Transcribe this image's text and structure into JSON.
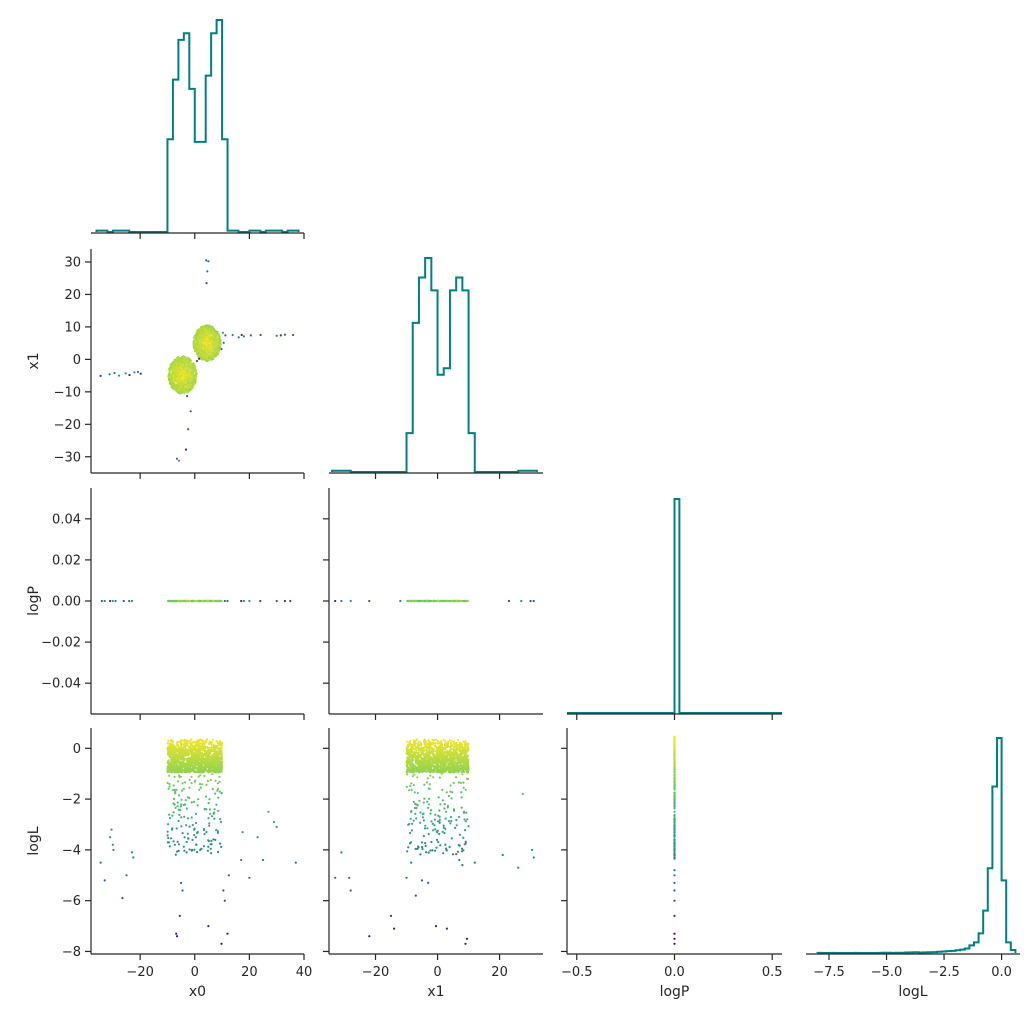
{
  "chart_data": {
    "type": "corner",
    "variables": [
      "x0",
      "x1",
      "logP",
      "logL"
    ],
    "line_color": "#008080",
    "colormap": "viridis",
    "color_by": "logL",
    "axes": {
      "x0": {
        "range": [
          -38,
          40
        ],
        "ticks": [
          -20,
          0,
          20,
          40
        ]
      },
      "x1": {
        "range": [
          -35,
          34
        ],
        "ticks": [
          -30,
          -20,
          -10,
          0,
          10,
          20,
          30
        ]
      },
      "logP": {
        "range": [
          -0.055,
          0.055
        ],
        "ticks": [
          -0.04,
          -0.02,
          0.0,
          0.02,
          0.04
        ],
        "hist_range": [
          -0.55,
          0.55
        ],
        "hist_ticks": [
          -0.5,
          0.0,
          0.5
        ]
      },
      "logL": {
        "range": [
          -8.1,
          0.8
        ],
        "ticks": [
          -8,
          -6,
          -4,
          -2,
          0
        ],
        "hist_range": [
          -8.5,
          0.8
        ],
        "hist_ticks": [
          -7.5,
          -5.0,
          -2.5,
          0.0
        ]
      }
    },
    "tick_labels": {
      "x0": [
        "−20",
        "0",
        "20",
        "40"
      ],
      "x1_row": [
        "−30",
        "−20",
        "−10",
        "0",
        "10",
        "20",
        "30"
      ],
      "x1_col": [
        "−20",
        "0",
        "20"
      ],
      "logP_row": [
        "−0.04",
        "−0.02",
        "0.00",
        "0.02",
        "0.04"
      ],
      "logP_col": [
        "−0.5",
        "0.0",
        "0.5"
      ],
      "logL_row": [
        "−8",
        "−6",
        "−4",
        "−2",
        "0"
      ],
      "logL_col": [
        "−7.5",
        "−5.0",
        "−2.5",
        "0.0"
      ]
    },
    "histograms": {
      "x0": {
        "edges": [
          -36,
          -34,
          -32,
          -30,
          -28,
          -26,
          -24,
          -22,
          -20,
          -18,
          -16,
          -14,
          -12,
          -10,
          -8,
          -6,
          -4,
          -2,
          0,
          2,
          4,
          6,
          8,
          10,
          12,
          14,
          16,
          18,
          20,
          22,
          24,
          26,
          28,
          30,
          32,
          34,
          36,
          38
        ],
        "counts": [
          1,
          1,
          0,
          1,
          1,
          1,
          0,
          0,
          0,
          0,
          0,
          0,
          0,
          70,
          115,
          145,
          150,
          108,
          68,
          68,
          118,
          150,
          160,
          70,
          1,
          1,
          0,
          0,
          1,
          1,
          0,
          1,
          1,
          1,
          0,
          1,
          1
        ]
      },
      "x1": {
        "edges": [
          -34,
          -32,
          -30,
          -28,
          -26,
          -24,
          -22,
          -20,
          -18,
          -16,
          -14,
          -12,
          -10,
          -8,
          -6,
          -4,
          -2,
          0,
          2,
          4,
          6,
          8,
          10,
          12,
          14,
          16,
          18,
          20,
          22,
          24,
          26,
          28,
          30,
          32
        ],
        "counts": [
          1,
          1,
          1,
          0,
          0,
          0,
          0,
          0,
          0,
          0,
          0,
          0,
          30,
          115,
          150,
          165,
          140,
          75,
          80,
          140,
          150,
          140,
          30,
          0,
          0,
          0,
          0,
          0,
          0,
          0,
          1,
          1,
          1
        ]
      },
      "logP": {
        "edges": [
          -0.55,
          -0.525,
          -0.5,
          -0.475,
          -0.45,
          -0.425,
          -0.4,
          -0.375,
          -0.35,
          -0.325,
          -0.3,
          -0.275,
          -0.25,
          -0.225,
          -0.2,
          -0.175,
          -0.15,
          -0.125,
          -0.1,
          -0.075,
          -0.05,
          -0.025,
          0.0,
          0.025,
          0.05,
          0.075,
          0.1,
          0.125,
          0.15,
          0.175,
          0.2,
          0.225,
          0.25,
          0.275,
          0.3,
          0.325,
          0.35,
          0.375,
          0.4,
          0.425,
          0.45,
          0.475,
          0.5,
          0.525,
          0.55
        ],
        "counts": [
          0,
          0,
          0,
          0,
          0,
          0,
          0,
          0,
          0,
          0,
          0,
          0,
          0,
          0,
          0,
          0,
          0,
          0,
          0,
          0,
          0,
          0,
          1000,
          0,
          0,
          0,
          0,
          0,
          0,
          0,
          0,
          0,
          0,
          0,
          0,
          0,
          0,
          0,
          0,
          0,
          0,
          0,
          0,
          0
        ]
      },
      "logL": {
        "edges": [
          -8.0,
          -7.8,
          -7.6,
          -7.4,
          -7.2,
          -7.0,
          -6.8,
          -6.6,
          -6.4,
          -6.2,
          -6.0,
          -5.8,
          -5.6,
          -5.4,
          -5.2,
          -5.0,
          -4.8,
          -4.6,
          -4.4,
          -4.2,
          -4.0,
          -3.8,
          -3.6,
          -3.4,
          -3.2,
          -3.0,
          -2.8,
          -2.6,
          -2.4,
          -2.2,
          -2.0,
          -1.8,
          -1.6,
          -1.4,
          -1.2,
          -1.0,
          -0.8,
          -0.6,
          -0.4,
          -0.2,
          0.0,
          0.2,
          0.4,
          0.6
        ],
        "counts": [
          1,
          0,
          0,
          1,
          0,
          0,
          0,
          0,
          1,
          0,
          0,
          0,
          0,
          1,
          2,
          2,
          1,
          2,
          2,
          3,
          4,
          5,
          3,
          4,
          5,
          6,
          8,
          10,
          12,
          14,
          18,
          22,
          30,
          50,
          70,
          130,
          280,
          560,
          1100,
          1420,
          480,
          70,
          20
        ]
      }
    },
    "scatter": {
      "x0_x1": [
        [
          4.2,
          30.5
        ],
        [
          5.0,
          30.2
        ],
        [
          4.6,
          27.1
        ],
        [
          4.3,
          23.5
        ],
        [
          -34.5,
          -5.1
        ],
        [
          -31.2,
          -4.6
        ],
        [
          -29.4,
          -4.2
        ],
        [
          -27.8,
          -5.0
        ],
        [
          -25.3,
          -4.3
        ],
        [
          -23.9,
          -4.8
        ],
        [
          -22.1,
          -4.0
        ],
        [
          -20.8,
          -3.9
        ],
        [
          -19.8,
          -4.4
        ],
        [
          -6.5,
          -30.6
        ],
        [
          -5.8,
          -31.2
        ],
        [
          -3.2,
          -27.8
        ],
        [
          -2.4,
          -21.5
        ],
        [
          -1.5,
          -16.0
        ],
        [
          -2.8,
          -11.3
        ],
        [
          0.8,
          -0.5
        ],
        [
          1.6,
          0.2
        ],
        [
          10.3,
          8.2
        ],
        [
          11.2,
          7.4
        ],
        [
          10.6,
          5.1
        ],
        [
          9.8,
          3.2
        ],
        [
          13.9,
          7.5
        ],
        [
          16.1,
          6.8
        ],
        [
          17.2,
          7.5
        ],
        [
          18.0,
          7.1
        ],
        [
          20.5,
          7.4
        ],
        [
          24.1,
          7.5
        ],
        [
          30.0,
          7.3
        ],
        [
          31.5,
          7.4
        ],
        [
          33.0,
          7.6
        ],
        [
          36.0,
          7.5
        ]
      ],
      "clusters": [
        {
          "cx": -4.5,
          "cy": -4.8,
          "rx": 5.2,
          "ry": 5.8,
          "n": 900
        },
        {
          "cx": 4.5,
          "cy": 5.0,
          "rx": 5.0,
          "ry": 5.5,
          "n": 900
        }
      ],
      "x0_logL_outliers": [
        [
          -34.5,
          -4.5
        ],
        [
          -33.0,
          -5.2
        ],
        [
          -31.0,
          -3.5
        ],
        [
          -30.5,
          -3.2
        ],
        [
          -30.0,
          -3.8
        ],
        [
          -29.8,
          -4.0
        ],
        [
          -26.5,
          -5.9
        ],
        [
          -25.0,
          -5.0
        ],
        [
          -23.0,
          -4.1
        ],
        [
          -22.5,
          -4.3
        ],
        [
          -6.8,
          -7.3
        ],
        [
          -6.5,
          -7.4
        ],
        [
          -5.5,
          -6.6
        ],
        [
          -5.0,
          -5.3
        ],
        [
          -4.5,
          -5.6
        ],
        [
          -3.0,
          -4.1
        ],
        [
          -1.0,
          -4.0
        ],
        [
          0.5,
          -3.8
        ],
        [
          2.0,
          -4.0
        ],
        [
          5.0,
          -7.0
        ],
        [
          9.8,
          -7.7
        ],
        [
          10.5,
          -5.6
        ],
        [
          11.0,
          -6.0
        ],
        [
          12.0,
          -7.3
        ],
        [
          12.5,
          -5.0
        ],
        [
          17.0,
          -4.4
        ],
        [
          17.5,
          -3.3
        ],
        [
          20.0,
          -5.1
        ],
        [
          23.0,
          -3.5
        ],
        [
          25.0,
          -4.4
        ],
        [
          27.0,
          -2.5
        ],
        [
          29.0,
          -2.9
        ],
        [
          30.0,
          -3.1
        ],
        [
          37.0,
          -4.5
        ]
      ],
      "x1_logL_outliers": [
        [
          -33.0,
          -5.1
        ],
        [
          -31.0,
          -4.1
        ],
        [
          -28.5,
          -5.1
        ],
        [
          -28.0,
          -5.6
        ],
        [
          -22.0,
          -7.4
        ],
        [
          -15.0,
          -6.6
        ],
        [
          -14.0,
          -7.1
        ],
        [
          -10.0,
          -5.1
        ],
        [
          -8.5,
          -4.5
        ],
        [
          -7.0,
          -5.8
        ],
        [
          -5.0,
          -5.2
        ],
        [
          -3.0,
          -5.3
        ],
        [
          -0.5,
          -7.0
        ],
        [
          3.0,
          -7.1
        ],
        [
          7.0,
          -4.4
        ],
        [
          8.0,
          -4.6
        ],
        [
          9.5,
          -7.5
        ],
        [
          9.0,
          -7.7
        ],
        [
          12.0,
          -4.5
        ],
        [
          21.0,
          -4.2
        ],
        [
          26.0,
          -4.7
        ],
        [
          27.5,
          -1.8
        ],
        [
          30.5,
          -4.0
        ],
        [
          31.0,
          -4.3
        ]
      ],
      "logP_logL": [
        [
          0.0,
          -7.7
        ],
        [
          0.0,
          -7.5
        ],
        [
          0.0,
          -7.3
        ],
        [
          0.0,
          -6.6
        ],
        [
          0.0,
          -6.0
        ],
        [
          0.0,
          -5.6
        ],
        [
          0.0,
          -5.3
        ],
        [
          0.0,
          -5.0
        ],
        [
          0.0,
          -4.8
        ]
      ]
    }
  }
}
